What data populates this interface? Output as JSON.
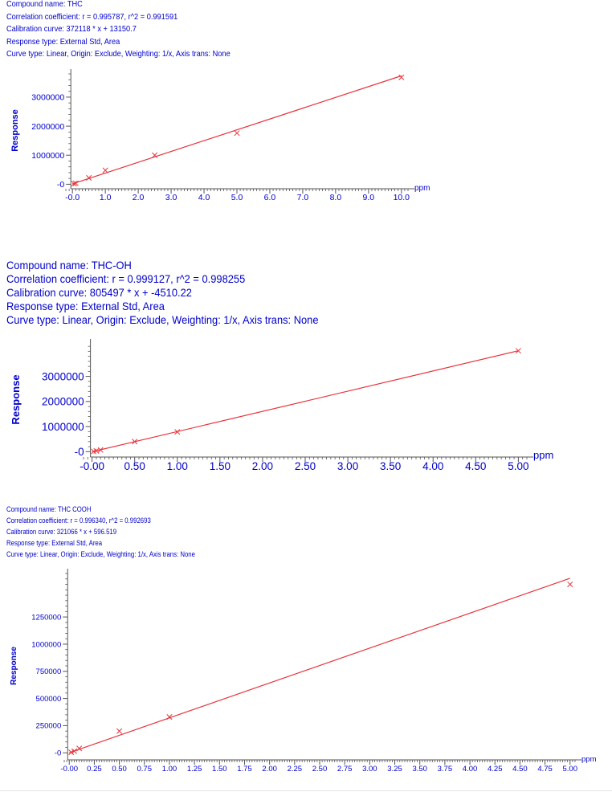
{
  "chart_data": [
    {
      "type": "scatter",
      "compound_label": "Compound name: THC",
      "header_lines": [
        "Compound name: THC",
        "Correlation coefficient: r = 0.995787, r^2 = 0.991591",
        "Calibration curve: 372118 * x + 13150.7",
        "Response type: External Std, Area",
        "Curve type: Linear, Origin: Exclude, Weighting: 1/x, Axis trans: None"
      ],
      "slope": 372118,
      "intercept": 13150.7,
      "xlabel": "ppm",
      "ylabel": "Response",
      "xlim": [
        -0.2,
        10.2
      ],
      "ylim": [
        -100000,
        3800000
      ],
      "x_ticks": [
        "-0.0",
        "1.0",
        "2.0",
        "3.0",
        "4.0",
        "5.0",
        "6.0",
        "7.0",
        "8.0",
        "9.0",
        "10.0"
      ],
      "x_tick_values": [
        0,
        1,
        2,
        3,
        4,
        5,
        6,
        7,
        8,
        9,
        10
      ],
      "y_ticks": [
        "-0",
        "1000000",
        "2000000",
        "3000000"
      ],
      "y_tick_values": [
        0,
        1000000,
        2000000,
        3000000
      ],
      "points": [
        {
          "x": 0.05,
          "y": 20000
        },
        {
          "x": 0.1,
          "y": 35000
        },
        {
          "x": 0.5,
          "y": 220000
        },
        {
          "x": 1.0,
          "y": 480000
        },
        {
          "x": 2.5,
          "y": 1000000
        },
        {
          "x": 5.0,
          "y": 1760000
        },
        {
          "x": 10.0,
          "y": 3680000
        }
      ],
      "grid": false,
      "colors": {
        "line": "#e8333c",
        "text": "#0000cc",
        "axis": "#555555"
      }
    },
    {
      "type": "scatter",
      "header_lines": [
        "Compound name: THC-OH",
        "Correlation coefficient: r = 0.999127, r^2 = 0.998255",
        "Calibration curve: 805497 * x + -4510.22",
        "Response type: External Std, Area",
        "Curve type: Linear, Origin: Exclude, Weighting: 1/x, Axis trans: None"
      ],
      "slope": 805497,
      "intercept": -4510.22,
      "xlabel": "ppm",
      "ylabel": "Response",
      "xlim": [
        -0.1,
        5.1
      ],
      "ylim": [
        -150000,
        4300000
      ],
      "x_ticks": [
        "-0.00",
        "0.50",
        "1.00",
        "1.50",
        "2.00",
        "2.50",
        "3.00",
        "3.50",
        "4.00",
        "4.50",
        "5.00"
      ],
      "x_tick_values": [
        0,
        0.5,
        1,
        1.5,
        2,
        2.5,
        3,
        3.5,
        4,
        4.5,
        5
      ],
      "y_ticks": [
        "-0",
        "1000000",
        "2000000",
        "3000000"
      ],
      "y_tick_values": [
        0,
        1000000,
        2000000,
        3000000
      ],
      "points": [
        {
          "x": 0.02,
          "y": 10000
        },
        {
          "x": 0.05,
          "y": 30000
        },
        {
          "x": 0.1,
          "y": 70000
        },
        {
          "x": 0.5,
          "y": 400000
        },
        {
          "x": 1.0,
          "y": 790000
        },
        {
          "x": 5.0,
          "y": 4020000
        }
      ],
      "grid": false,
      "colors": {
        "line": "#e8333c",
        "text": "#0000cc",
        "axis": "#555555"
      }
    },
    {
      "type": "scatter",
      "header_lines": [
        "Compound name: THC COOH",
        "Correlation coefficient: r = 0.996340, r^2 = 0.992693",
        "Calibration curve: 321066 * x + 596.519",
        "Response type: External Std, Area",
        "Curve type: Linear, Origin: Exclude, Weighting: 1/x, Axis trans: None"
      ],
      "slope": 321066,
      "intercept": 596.519,
      "xlabel": "ppm",
      "ylabel": "Response",
      "xlim": [
        -0.05,
        5.05
      ],
      "ylim": [
        -50000,
        1650000
      ],
      "x_ticks": [
        "-0.00",
        "0.25",
        "0.50",
        "0.75",
        "1.00",
        "1.25",
        "1.50",
        "1.75",
        "2.00",
        "2.25",
        "2.50",
        "2.75",
        "3.00",
        "3.25",
        "3.50",
        "3.75",
        "4.00",
        "4.25",
        "4.50",
        "4.75",
        "5.00"
      ],
      "x_tick_values": [
        0,
        0.25,
        0.5,
        0.75,
        1,
        1.25,
        1.5,
        1.75,
        2,
        2.25,
        2.5,
        2.75,
        3,
        3.25,
        3.5,
        3.75,
        4,
        4.25,
        4.5,
        4.75,
        5
      ],
      "y_ticks": [
        "-0",
        "250000",
        "500000",
        "750000",
        "1000000",
        "1250000"
      ],
      "y_tick_values": [
        0,
        250000,
        500000,
        750000,
        1000000,
        1250000
      ],
      "points": [
        {
          "x": 0.02,
          "y": 5000
        },
        {
          "x": 0.05,
          "y": 15000
        },
        {
          "x": 0.1,
          "y": 40000
        },
        {
          "x": 0.5,
          "y": 200000
        },
        {
          "x": 1.0,
          "y": 330000
        },
        {
          "x": 5.0,
          "y": 1550000
        }
      ],
      "grid": false,
      "colors": {
        "line": "#e8333c",
        "text": "#0000cc",
        "axis": "#555555"
      }
    }
  ]
}
